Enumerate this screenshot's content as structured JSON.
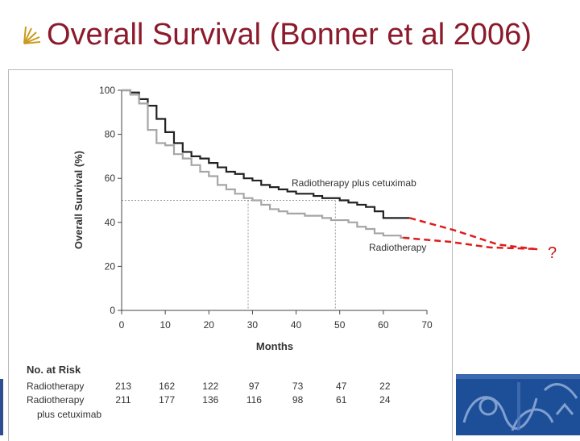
{
  "slide": {
    "title": "Overall Survival (Bonner et al 2006)",
    "accent_color": "#8b1a2b",
    "bullet_icon": "fan-bullet-icon"
  },
  "chart_data": {
    "type": "line",
    "title": "",
    "xlabel": "Months",
    "ylabel": "Overall Survival (%)",
    "xlim": [
      0,
      70
    ],
    "ylim": [
      0,
      100
    ],
    "x_ticks": [
      0,
      10,
      20,
      30,
      40,
      50,
      60,
      70
    ],
    "y_ticks": [
      0,
      20,
      40,
      60,
      80,
      100
    ],
    "series": [
      {
        "name": "Radiotherapy plus cetuximab",
        "color": "#222222",
        "x": [
          0,
          2,
          4,
          6,
          8,
          10,
          12,
          14,
          16,
          18,
          20,
          22,
          24,
          26,
          28,
          30,
          32,
          34,
          36,
          38,
          40,
          42,
          44,
          46,
          48,
          50,
          52,
          54,
          56,
          58,
          60,
          62,
          64,
          66
        ],
        "y": [
          100,
          99,
          96,
          93,
          87,
          81,
          76,
          72,
          70,
          69,
          67,
          65,
          63,
          62,
          60,
          59,
          57,
          56,
          55,
          54,
          53,
          53,
          52,
          51,
          51,
          50,
          49,
          48,
          47,
          45,
          42,
          42,
          42,
          42
        ]
      },
      {
        "name": "Radiotherapy",
        "color": "#a6a6a6",
        "x": [
          0,
          2,
          4,
          6,
          8,
          10,
          12,
          14,
          16,
          18,
          20,
          22,
          24,
          26,
          28,
          30,
          32,
          34,
          36,
          38,
          40,
          42,
          44,
          46,
          48,
          50,
          52,
          54,
          56,
          58,
          60,
          62,
          64,
          66
        ],
        "y": [
          100,
          98,
          94,
          82,
          76,
          75,
          71,
          69,
          66,
          63,
          61,
          57,
          55,
          53,
          51,
          50,
          48,
          46,
          45,
          44,
          44,
          43,
          43,
          42,
          41,
          41,
          40,
          38,
          37,
          35,
          34,
          34,
          33,
          33
        ]
      }
    ],
    "series_labels": [
      "Radiotherapy plus cetuximab",
      "Radiotherapy"
    ],
    "median_guides": [
      {
        "x": 29,
        "y": 50
      },
      {
        "x": 49,
        "y": 50
      }
    ],
    "extrapolation": {
      "color": "#e01b1b",
      "label": "?"
    },
    "risk_table": {
      "header": "No. at Risk",
      "rows": [
        {
          "label": "Radiotherapy",
          "label2": "",
          "values": [
            "213",
            "162",
            "122",
            "97",
            "73",
            "47",
            "22"
          ]
        },
        {
          "label": "Radiotherapy",
          "label2": "plus cetuximab",
          "values": [
            "211",
            "177",
            "136",
            "116",
            "98",
            "61",
            "24"
          ]
        }
      ],
      "value_months": [
        0,
        10,
        20,
        30,
        40,
        50,
        60
      ]
    }
  },
  "decor": {
    "strip_color": "#2c4f8f",
    "corner_color": "#1d4f99",
    "corner_icon": "heraldic-pattern-icon"
  }
}
